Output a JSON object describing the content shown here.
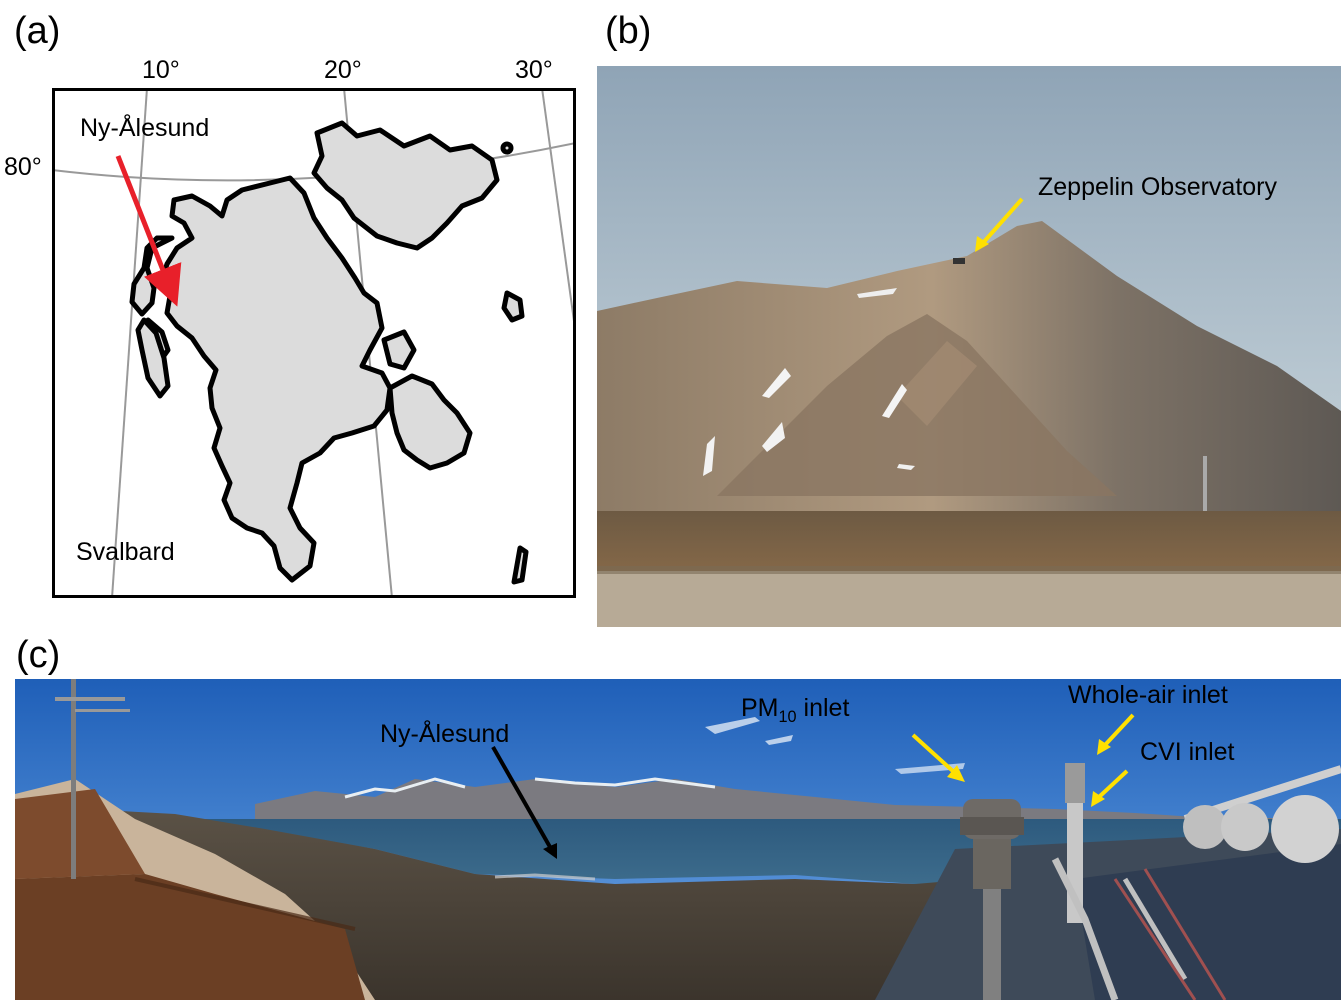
{
  "panels": {
    "a": {
      "label": "(a)"
    },
    "b": {
      "label": "(b)"
    },
    "c": {
      "label": "(c)"
    }
  },
  "map": {
    "lon_labels": [
      "10°",
      "20°",
      "30°"
    ],
    "lat_label": "80°",
    "place_label": "Ny-Ålesund",
    "region_label": "Svalbard",
    "land_color": "#dcdcdc",
    "coast_color": "#000000",
    "grid_color": "#999999",
    "arrow_color": "#e8202a"
  },
  "photo_b": {
    "annotation": "Zeppelin Observatory",
    "arrow_color": "#ffe000"
  },
  "photo_c": {
    "town_label": "Ny-Ålesund",
    "pm_label_main": "PM",
    "pm_label_sub": "10",
    "pm_label_rest": " inlet",
    "whole_air_label": "Whole-air inlet",
    "cvi_label": "CVI inlet",
    "arrow_color_yellow": "#ffe000",
    "arrow_color_black": "#000000"
  }
}
